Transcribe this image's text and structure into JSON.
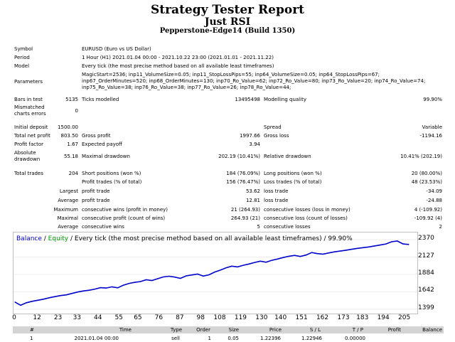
{
  "report": {
    "title": "Strategy Tester Report",
    "expert": "Just RSI",
    "server": "Pepperstone-Edge14 (Build 1350)"
  },
  "settings": {
    "symbol_label": "Symbol",
    "symbol": "EURUSD (Euro vs US Dollar)",
    "period_label": "Period",
    "period": "1 Hour (H1) 2021.01.04 00:00 - 2021.10.22 23:00 (2021.01.01 - 2021.11.22)",
    "model_label": "Model",
    "model": "Every tick (the most precise method based on all available least timeframes)",
    "parameters_label": "Parameters",
    "parameters_line1": "MagicStart=2536; inp11_VolumeSize=0.05; inp11_StopLossPips=55; inp64_VolumeSize=0.05; inp64_StopLossPips=67;",
    "parameters_line2": "inp67_OrderMinutes=520; inp68_OrderMinutes=130; inp70_Ro_Value=62; inp72_Ro_Value=80; inp73_Ro_Value=20; inp74_Ro_Value=74;",
    "parameters_line3": "inp75_Ro_Value=38; inp76_Ro_Value=38; inp77_Ro_Value=26; inp78_Ro_Value=44;",
    "bars_label": "Bars in test",
    "bars": "5135",
    "ticks_label": "Ticks modelled",
    "ticks": "13495498",
    "quality_label": "Modelling quality",
    "quality": "99.90%",
    "mismatched_label_1": "Mismatched",
    "mismatched_label_2": "charts errors",
    "mismatched": "0"
  },
  "results": {
    "initial_deposit_label": "Initial deposit",
    "initial_deposit": "1500.00",
    "spread_label": "Spread",
    "spread": "Variable",
    "total_net_profit_label": "Total net profit",
    "total_net_profit": "803.50",
    "gross_profit_label": "Gross profit",
    "gross_profit": "1997.66",
    "gross_loss_label": "Gross loss",
    "gross_loss": "-1194.16",
    "profit_factor_label": "Profit factor",
    "profit_factor": "1.67",
    "expected_payoff_label": "Expected payoff",
    "expected_payoff": "3.94",
    "absolute_dd_label_1": "Absolute",
    "absolute_dd_label_2": "drawdown",
    "absolute_dd": "55.18",
    "maximal_dd_label": "Maximal drawdown",
    "maximal_dd": "202.19 (10.41%)",
    "relative_dd_label": "Relative drawdown",
    "relative_dd": "10.41% (202.19)",
    "total_trades_label": "Total trades",
    "total_trades": "204",
    "short_label": "Short positions (won %)",
    "short": "184 (76.09%)",
    "long_label": "Long positions (won %)",
    "long": "20 (80.00%)",
    "profit_trades_label": "Profit trades (% of total)",
    "profit_trades": "156 (76.47%)",
    "loss_trades_label": "Loss trades (% of total)",
    "loss_trades": "48 (23.53%)",
    "largest_label": "Largest",
    "largest_profit_label": "profit trade",
    "largest_profit": "53.62",
    "largest_loss_label": "loss trade",
    "largest_loss": "-34.09",
    "average_label": "Average",
    "average_profit_label": "profit trade",
    "average_profit": "12.81",
    "average_loss_label": "loss trade",
    "average_loss": "-24.88",
    "maximum_label": "Maximum",
    "max_cons_wins_label": "consecutive wins (profit in money)",
    "max_cons_wins": "21 (264.93)",
    "max_cons_losses_label": "consecutive losses (loss in money)",
    "max_cons_losses": "4 (-109.92)",
    "maximal_label": "Maximal",
    "maximal_cons_profit_label": "consecutive profit (count of wins)",
    "maximal_cons_profit": "264.93 (21)",
    "maximal_cons_loss_label": "consecutive loss (count of losses)",
    "maximal_cons_loss": "-109.92 (4)",
    "avg_cons_label": "Average",
    "avg_cons_wins_label": "consecutive wins",
    "avg_cons_wins": "5",
    "avg_cons_losses_label": "consecutive losses",
    "avg_cons_losses": "2"
  },
  "chart_data": {
    "type": "line",
    "legend_balance": "Balance",
    "legend_sep1": " / ",
    "legend_equity": "Equity",
    "legend_sep2": " / ",
    "legend_rest": "Every tick (the most precise method based on all available least timeframes) / 99.90%",
    "balance_color": "#0000cc",
    "equity_color": "#009900",
    "y_ticks": [
      "2370",
      "2127",
      "1884",
      "1642",
      "1399"
    ],
    "y_tick_values": [
      2370,
      2127,
      1884,
      1642,
      1399
    ],
    "ylim": [
      1399,
      2370
    ],
    "x_ticks": [
      "0",
      "12",
      "23",
      "33",
      "44",
      "55",
      "65",
      "76",
      "87",
      "98",
      "108",
      "119",
      "130",
      "140",
      "151",
      "162",
      "173",
      "183",
      "194",
      "205"
    ],
    "x_tick_values": [
      0,
      12,
      23,
      33,
      44,
      55,
      65,
      76,
      87,
      98,
      108,
      119,
      130,
      140,
      151,
      162,
      173,
      183,
      194,
      205
    ],
    "xlim": [
      0,
      210
    ],
    "series": [
      {
        "name": "Balance",
        "x": [
          0,
          3,
          6,
          9,
          12,
          15,
          18,
          21,
          24,
          27,
          30,
          33,
          36,
          39,
          42,
          45,
          48,
          51,
          54,
          57,
          60,
          63,
          66,
          69,
          72,
          75,
          78,
          81,
          84,
          87,
          90,
          93,
          96,
          99,
          102,
          105,
          108,
          111,
          114,
          117,
          120,
          123,
          126,
          129,
          132,
          135,
          138,
          141,
          144,
          147,
          150,
          153,
          156,
          159,
          162,
          165,
          168,
          171,
          174,
          177,
          180,
          183,
          186,
          189,
          192,
          195,
          198,
          201,
          204,
          207
        ],
        "values": [
          1500,
          1455,
          1490,
          1510,
          1525,
          1540,
          1560,
          1575,
          1590,
          1600,
          1620,
          1640,
          1655,
          1665,
          1680,
          1700,
          1695,
          1712,
          1698,
          1735,
          1760,
          1775,
          1785,
          1810,
          1800,
          1825,
          1850,
          1860,
          1848,
          1830,
          1865,
          1878,
          1890,
          1862,
          1880,
          1918,
          1945,
          1978,
          2000,
          1990,
          2012,
          2030,
          2052,
          2070,
          2055,
          2082,
          2100,
          2120,
          2138,
          2150,
          2135,
          2155,
          2190,
          2175,
          2168,
          2185,
          2200,
          2210,
          2222,
          2235,
          2248,
          2258,
          2268,
          2282,
          2295,
          2310,
          2340,
          2350,
          2310,
          2303
        ]
      }
    ]
  },
  "table": {
    "headers": [
      "#",
      "Time",
      "Type",
      "Order",
      "Size",
      "Price",
      "S / L",
      "T / P",
      "Profit",
      "Balance"
    ],
    "row1": [
      "1",
      "2021.01.04 00:00",
      "sell",
      "1",
      "0.05",
      "1.22396",
      "1.22946",
      "0.00000",
      "",
      ""
    ]
  }
}
